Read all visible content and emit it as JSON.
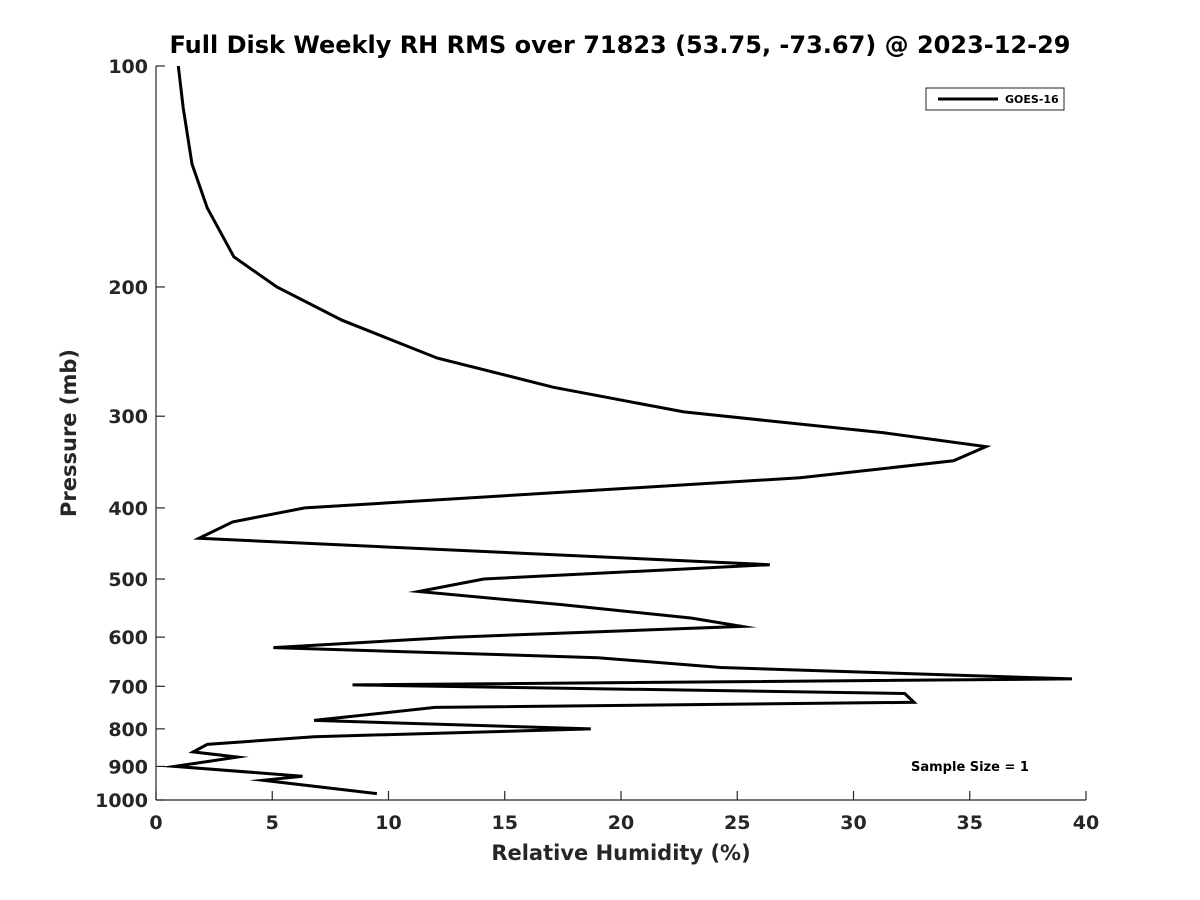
{
  "chart_data": {
    "type": "line",
    "title": "Full Disk Weekly RH RMS over 71823 (53.75, -73.67) @ 2023-12-29",
    "xlabel": "Relative Humidity (%)",
    "ylabel": "Pressure (mb)",
    "xlim": [
      0,
      40
    ],
    "ylim": [
      1000,
      100
    ],
    "yscale": "log",
    "y_reversed": true,
    "xticks": [
      0,
      5,
      10,
      15,
      20,
      25,
      30,
      35,
      40
    ],
    "yticks": [
      100,
      200,
      300,
      400,
      500,
      600,
      700,
      800,
      900,
      1000
    ],
    "grid": false,
    "legend_position": "top-right",
    "annotation": "Sample Size = 1",
    "series": [
      {
        "name": "GOES-16",
        "color": "#000000",
        "points": [
          [
            0.96,
            100
          ],
          [
            1.17,
            114
          ],
          [
            1.55,
            136
          ],
          [
            2.2,
            156
          ],
          [
            3.35,
            182
          ],
          [
            5.2,
            200
          ],
          [
            8.0,
            222
          ],
          [
            12.1,
            250
          ],
          [
            17.1,
            274
          ],
          [
            22.7,
            296
          ],
          [
            31.3,
            316
          ],
          [
            35.7,
            330
          ],
          [
            34.3,
            345
          ],
          [
            27.7,
            364
          ],
          [
            6.4,
            400
          ],
          [
            3.3,
            418
          ],
          [
            1.85,
            440
          ],
          [
            26.4,
            478
          ],
          [
            14.1,
            500
          ],
          [
            11.3,
            520
          ],
          [
            17.5,
            542
          ],
          [
            23.0,
            565
          ],
          [
            25.2,
            580
          ],
          [
            12.8,
            600
          ],
          [
            5.05,
            620
          ],
          [
            19.0,
            640
          ],
          [
            24.3,
            660
          ],
          [
            39.4,
            684
          ],
          [
            8.45,
            697
          ],
          [
            32.2,
            716
          ],
          [
            32.6,
            736
          ],
          [
            12.0,
            748
          ],
          [
            6.8,
            779
          ],
          [
            18.7,
            800
          ],
          [
            6.8,
            820
          ],
          [
            2.2,
            840
          ],
          [
            1.6,
            860
          ],
          [
            3.5,
            874
          ],
          [
            0.8,
            900
          ],
          [
            6.3,
            928
          ],
          [
            4.6,
            940
          ],
          [
            9.5,
            980
          ]
        ]
      }
    ]
  }
}
